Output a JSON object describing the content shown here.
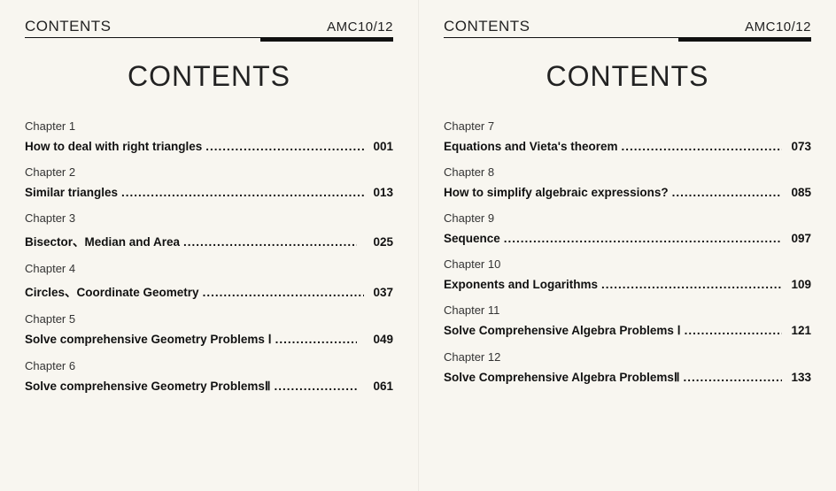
{
  "header": {
    "left": "CONTENTS",
    "right": "AMC10/12"
  },
  "title": "CONTENTS",
  "colors": {
    "background": "#f8f6f0",
    "text": "#111",
    "rule": "#111"
  },
  "pages": [
    {
      "chapters": [
        {
          "label": "Chapter 1",
          "title": "How to deal with right triangles",
          "page": "001",
          "spaced": false
        },
        {
          "label": "Chapter 2",
          "title": "Similar triangles",
          "page": "013",
          "spaced": false
        },
        {
          "label": "Chapter 3",
          "title": "Bisector、Median and Area",
          "page": "025",
          "spaced": true
        },
        {
          "label": "Chapter 4",
          "title": "Circles、Coordinate Geometry",
          "page": "037",
          "spaced": false
        },
        {
          "label": "Chapter 5",
          "title": "Solve comprehensive Geometry Problems Ⅰ",
          "page": "049",
          "spaced": true
        },
        {
          "label": "Chapter 6",
          "title": "Solve comprehensive Geometry ProblemsⅡ",
          "page": "061",
          "spaced": true
        }
      ]
    },
    {
      "chapters": [
        {
          "label": "Chapter 7",
          "title": "Equations and Vieta's theorem",
          "page": "073",
          "spaced": false
        },
        {
          "label": "Chapter 8",
          "title": "How to simplify algebraic expressions?",
          "page": "085",
          "spaced": false
        },
        {
          "label": "Chapter 9",
          "title": "Sequence",
          "page": "097",
          "spaced": false
        },
        {
          "label": "Chapter 10",
          "title": "Exponents and Logarithms",
          "page": "109",
          "spaced": false
        },
        {
          "label": "Chapter 11",
          "title": "Solve Comprehensive Algebra Problems Ⅰ",
          "page": "121",
          "spaced": false
        },
        {
          "label": "Chapter 12",
          "title": "Solve Comprehensive Algebra ProblemsⅡ",
          "page": "133",
          "spaced": false
        }
      ]
    }
  ]
}
